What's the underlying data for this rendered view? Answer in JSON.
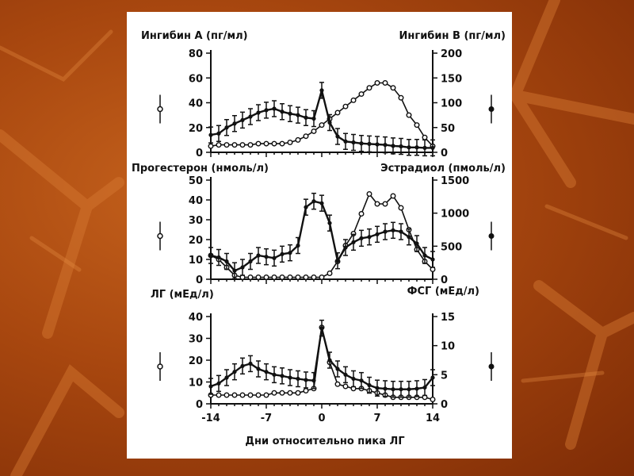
{
  "chart_data": [
    {
      "type": "line",
      "ylabel": "Ингибин А (пг/мл)",
      "ylabel_right": "Ингибин В (пг/мл)",
      "x": [
        -14,
        -13,
        -12,
        -11,
        -10,
        -9,
        -8,
        -7,
        -6,
        -5,
        -4,
        -3,
        -2,
        -1,
        0,
        1,
        2,
        3,
        4,
        5,
        6,
        7,
        8,
        9,
        10,
        11,
        12,
        13,
        14
      ],
      "ylim": [
        0,
        80
      ],
      "ylim_right": [
        0,
        200
      ],
      "yticks": [
        0,
        20,
        40,
        60,
        80
      ],
      "yticks_right": [
        0,
        50,
        100,
        150,
        200
      ],
      "series": [
        {
          "marker": "open",
          "axis": "left",
          "values": [
            5,
            6,
            6,
            6,
            6,
            6,
            7,
            7,
            7,
            7,
            8,
            10,
            13,
            17,
            22,
            27,
            32,
            37,
            42,
            47,
            52,
            56,
            56,
            52,
            44,
            30,
            22,
            12,
            5
          ]
        },
        {
          "marker": "filled",
          "axis": "right",
          "values": [
            35,
            38,
            50,
            58,
            65,
            72,
            80,
            85,
            88,
            82,
            78,
            75,
            70,
            68,
            125,
            60,
            32,
            22,
            20,
            18,
            17,
            16,
            15,
            13,
            12,
            10,
            10,
            9,
            9
          ]
        }
      ]
    },
    {
      "type": "line",
      "ylabel": "Прогестерон (нмоль/л)",
      "ylabel_right": "Эстрадиол (пмоль/л)",
      "x": [
        -14,
        -13,
        -12,
        -11,
        -10,
        -9,
        -8,
        -7,
        -6,
        -5,
        -4,
        -3,
        -2,
        -1,
        0,
        1,
        2,
        3,
        4,
        5,
        6,
        7,
        8,
        9,
        10,
        11,
        12,
        13,
        14
      ],
      "ylim": [
        0,
        50
      ],
      "ylim_right": [
        0,
        1500
      ],
      "yticks": [
        0,
        10,
        20,
        30,
        40,
        50
      ],
      "yticks_right": [
        0,
        500,
        1000,
        1500
      ],
      "series": [
        {
          "marker": "open",
          "axis": "left",
          "values": [
            12,
            10,
            6,
            2,
            1,
            1,
            1,
            1,
            1,
            1,
            1,
            1,
            1,
            1,
            1,
            3,
            9,
            17,
            23,
            33,
            43,
            38,
            38,
            42,
            36,
            25,
            15,
            9,
            5
          ]
        },
        {
          "marker": "filled",
          "axis": "right",
          "values": [
            360,
            330,
            270,
            130,
            180,
            270,
            360,
            340,
            320,
            380,
            400,
            510,
            1090,
            1180,
            1150,
            850,
            280,
            480,
            560,
            620,
            640,
            680,
            720,
            740,
            720,
            640,
            540,
            360,
            300
          ]
        }
      ]
    },
    {
      "type": "line",
      "ylabel": "ЛГ (мЕд/л)",
      "ylabel_right": "ФСГ (мЕд/л)",
      "xlabel": "Дни относительно пика ЛГ",
      "x": [
        -14,
        -13,
        -12,
        -11,
        -10,
        -9,
        -8,
        -7,
        -6,
        -5,
        -4,
        -3,
        -2,
        -1,
        0,
        1,
        2,
        3,
        4,
        5,
        6,
        7,
        8,
        9,
        10,
        11,
        12,
        13,
        14
      ],
      "xticks": [
        -14,
        -7,
        0,
        7,
        14
      ],
      "ylim": [
        0,
        40
      ],
      "ylim_right": [
        0,
        15
      ],
      "yticks": [
        0,
        10,
        20,
        30,
        40
      ],
      "yticks_right": [
        0,
        5,
        10,
        15
      ],
      "series": [
        {
          "marker": "open",
          "axis": "left",
          "values": [
            4,
            4,
            4,
            4,
            4,
            4,
            4,
            4,
            5,
            5,
            5,
            5,
            6,
            7,
            35,
            19,
            9,
            8,
            7,
            7,
            6,
            5,
            4,
            3,
            3,
            3,
            3,
            3,
            2
          ]
        },
        {
          "marker": "filled",
          "axis": "right",
          "values": [
            3,
            3.5,
            4.5,
            5.5,
            6.5,
            6.9,
            6,
            5.5,
            5,
            4.8,
            4.5,
            4.3,
            4.1,
            4,
            13,
            7.5,
            6,
            5,
            4.3,
            4,
            3.2,
            2.7,
            2.6,
            2.5,
            2.5,
            2.5,
            2.6,
            2.8,
            4.5
          ]
        }
      ]
    }
  ]
}
